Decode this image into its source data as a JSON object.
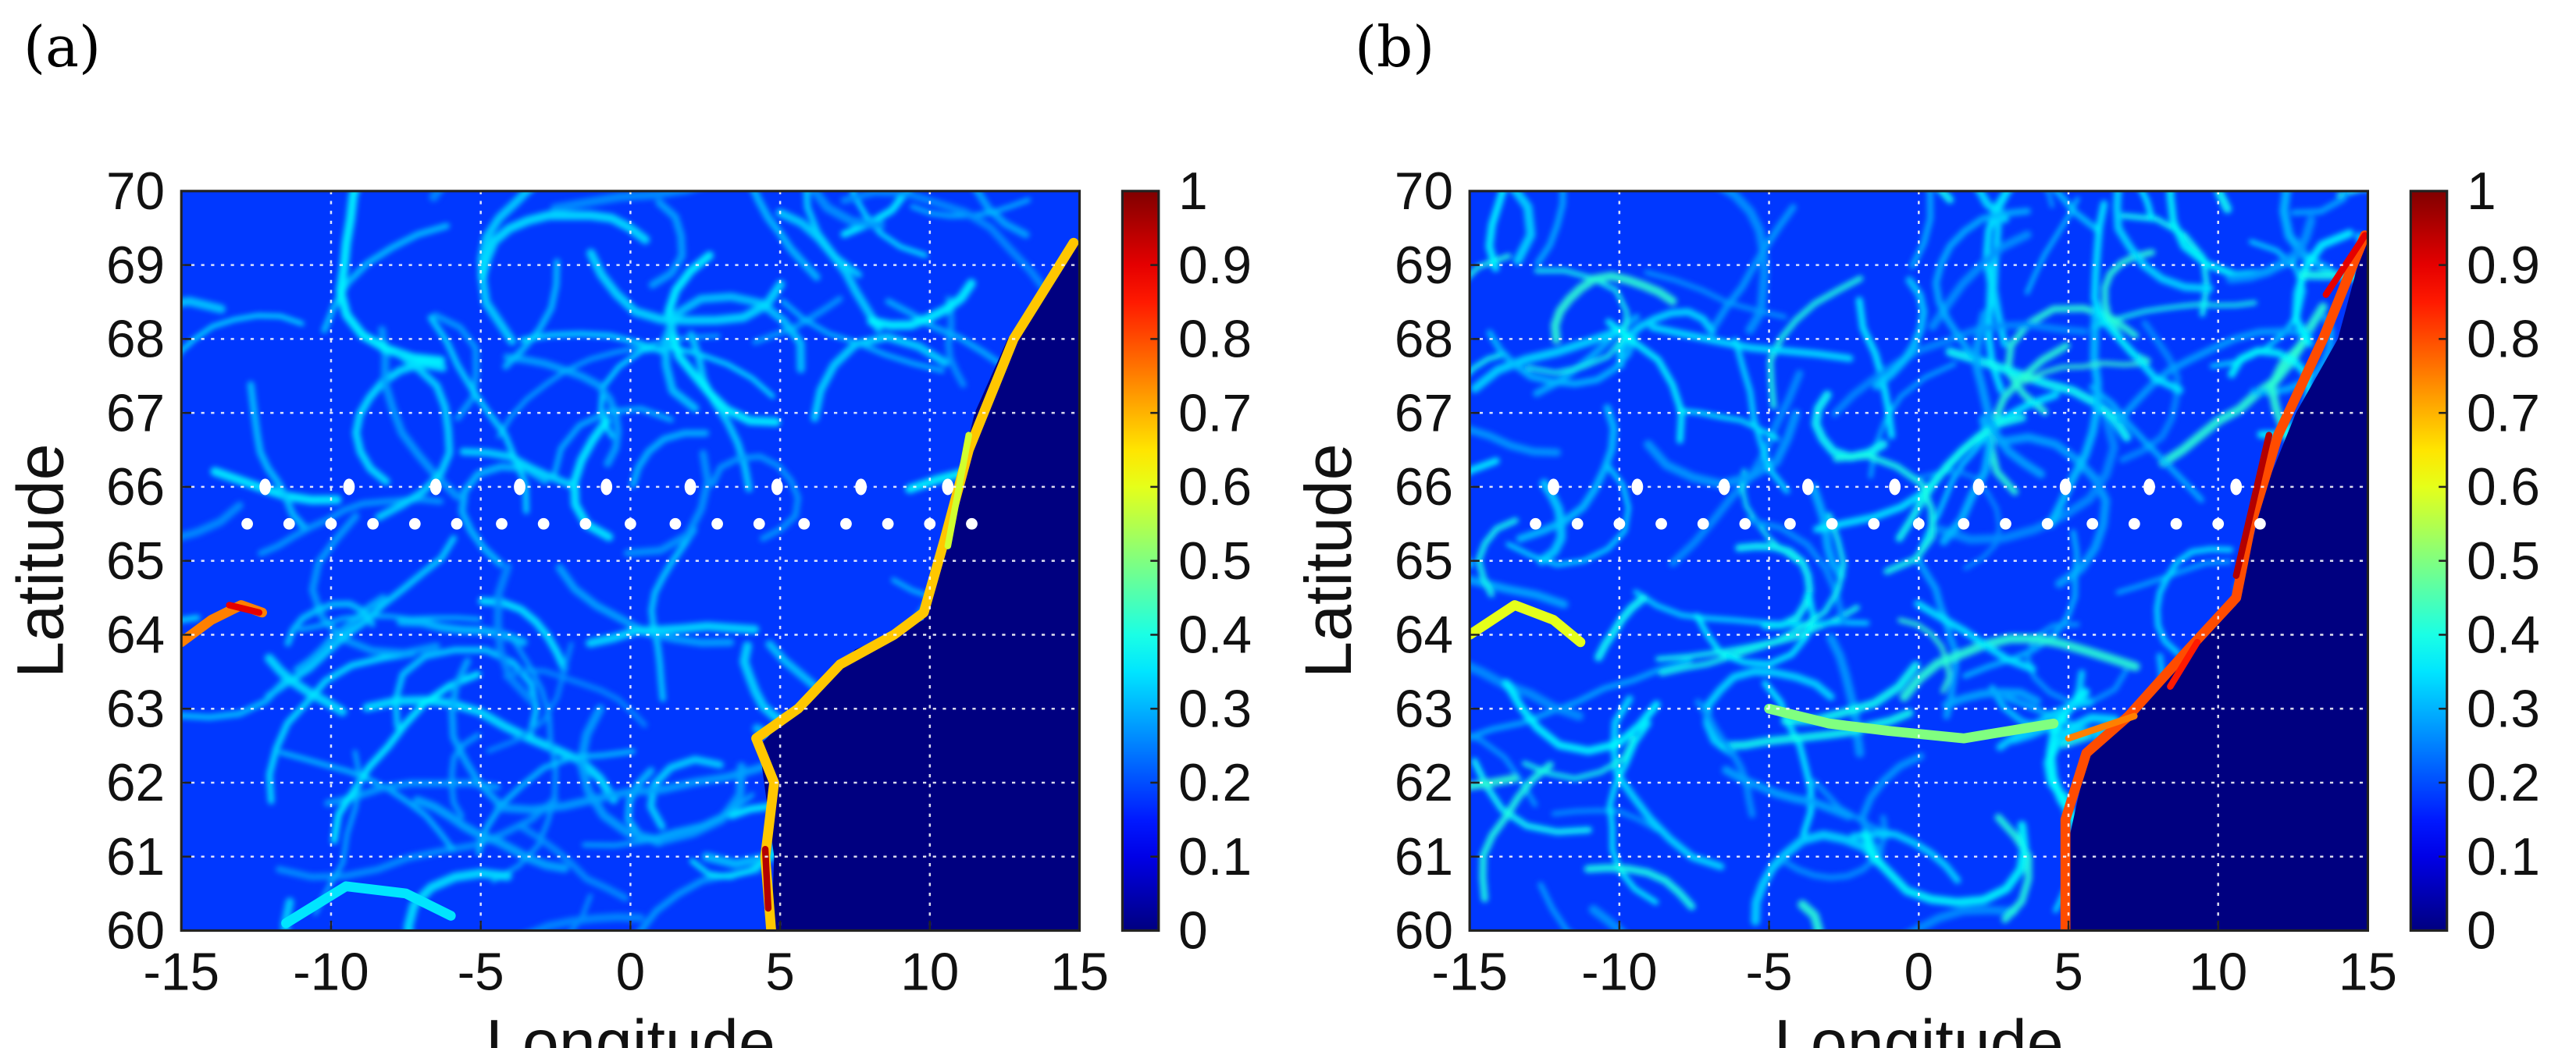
{
  "panels": [
    {
      "label": "(a)",
      "chart_data": {
        "type": "heatmap",
        "title": "",
        "xlabel": "Longitude",
        "ylabel": "Latitude",
        "xlim": [
          -15,
          15
        ],
        "ylim": [
          60,
          70
        ],
        "xticks": [
          -15,
          -10,
          -5,
          0,
          5,
          10,
          15
        ],
        "xtick_labels": [
          "-15",
          "-10",
          "-5",
          "0",
          "5",
          "10",
          "15"
        ],
        "yticks": [
          60,
          61,
          62,
          63,
          64,
          65,
          66,
          67,
          68,
          69,
          70
        ],
        "ytick_labels": [
          "60",
          "61",
          "62",
          "63",
          "64",
          "65",
          "66",
          "67",
          "68",
          "69",
          "70"
        ],
        "grid": true,
        "colormap": "jet",
        "colorbar": {
          "range": [
            0,
            1
          ],
          "ticks": [
            0,
            0.1,
            0.2,
            0.3,
            0.4,
            0.5,
            0.6,
            0.7,
            0.8,
            0.9,
            1
          ],
          "tick_labels": [
            "0",
            "0.1",
            "0.2",
            "0.3",
            "0.4",
            "0.5",
            "0.6",
            "0.7",
            "0.8",
            "0.9",
            "1"
          ]
        },
        "stations": {
          "upper_row": {
            "lat": 66.0,
            "lons": [
              -12.2,
              -9.4,
              -6.5,
              -3.7,
              -0.8,
              2.0,
              4.9,
              7.7,
              10.6
            ]
          },
          "lower_row": {
            "lat": 65.5,
            "lons": [
              -12.8,
              -11.4,
              -10.0,
              -8.6,
              -7.2,
              -5.8,
              -4.3,
              -2.9,
              -1.5,
              0,
              1.5,
              2.9,
              4.3,
              5.8,
              7.2,
              8.6,
              10.0,
              11.4
            ]
          }
        },
        "coast": [
          [
            4.7,
            60
          ],
          [
            4.8,
            61.0
          ],
          [
            4.3,
            62.5
          ],
          [
            6.0,
            63.2
          ],
          [
            7.5,
            63.8
          ],
          [
            9.8,
            64.2
          ],
          [
            10.3,
            65.0
          ],
          [
            11.5,
            67.0
          ],
          [
            12.6,
            68.0
          ],
          [
            15,
            69.3
          ]
        ],
        "ridges": [
          {
            "pts": [
              [
                4.7,
                60
              ],
              [
                4.5,
                61
              ],
              [
                4.8,
                62
              ],
              [
                4.2,
                62.6
              ],
              [
                5.6,
                63.0
              ],
              [
                7.0,
                63.6
              ],
              [
                8.8,
                64.0
              ],
              [
                9.8,
                64.3
              ],
              [
                10.5,
                65.3
              ],
              [
                11.3,
                66.5
              ],
              [
                12.8,
                68.0
              ],
              [
                14.8,
                69.3
              ]
            ],
            "v": 0.68
          },
          {
            "pts": [
              [
                -15,
                63.9
              ],
              [
                -14,
                64.2
              ],
              [
                -13,
                64.4
              ],
              [
                -12.3,
                64.3
              ]
            ],
            "v": 0.75
          },
          {
            "pts": [
              [
                -11.5,
                60.1
              ],
              [
                -9.5,
                60.6
              ],
              [
                -7.5,
                60.5
              ],
              [
                -6.0,
                60.2
              ]
            ],
            "v": 0.35
          }
        ],
        "peaks": [
          {
            "pts": [
              [
                4.6,
                60.3
              ],
              [
                4.5,
                61.1
              ]
            ],
            "v": 0.95
          },
          {
            "pts": [
              [
                10.6,
                65.2
              ],
              [
                11.3,
                66.7
              ]
            ],
            "v": 0.58
          },
          {
            "pts": [
              [
                -13.4,
                64.4
              ],
              [
                -12.4,
                64.3
              ]
            ],
            "v": 0.9
          }
        ],
        "noise_seed": 11,
        "noise_scale": 1.0
      }
    },
    {
      "label": "(b)",
      "chart_data": {
        "type": "heatmap",
        "title": "",
        "xlabel": "Longitude",
        "ylabel": "Latitude",
        "xlim": [
          -15,
          15
        ],
        "ylim": [
          60,
          70
        ],
        "xticks": [
          -15,
          -10,
          -5,
          0,
          5,
          10,
          15
        ],
        "xtick_labels": [
          "-15",
          "-10",
          "-5",
          "0",
          "5",
          "10",
          "15"
        ],
        "yticks": [
          60,
          61,
          62,
          63,
          64,
          65,
          66,
          67,
          68,
          69,
          70
        ],
        "ytick_labels": [
          "60",
          "61",
          "62",
          "63",
          "64",
          "65",
          "66",
          "67",
          "68",
          "69",
          "70"
        ],
        "grid": true,
        "colormap": "jet",
        "colorbar": {
          "range": [
            0,
            1
          ],
          "ticks": [
            0,
            0.1,
            0.2,
            0.3,
            0.4,
            0.5,
            0.6,
            0.7,
            0.8,
            0.9,
            1
          ],
          "tick_labels": [
            "0",
            "0.1",
            "0.2",
            "0.3",
            "0.4",
            "0.5",
            "0.6",
            "0.7",
            "0.8",
            "0.9",
            "1"
          ]
        },
        "stations": {
          "upper_row": {
            "lat": 66.0,
            "lons": [
              -12.2,
              -9.4,
              -6.5,
              -3.7,
              -0.8,
              2.0,
              4.9,
              7.7,
              10.6
            ]
          },
          "lower_row": {
            "lat": 65.5,
            "lons": [
              -12.8,
              -11.4,
              -10.0,
              -8.6,
              -7.2,
              -5.8,
              -4.3,
              -2.9,
              -1.5,
              0,
              1.5,
              2.9,
              4.3,
              5.8,
              7.2,
              8.6,
              10.0,
              11.4
            ]
          }
        },
        "coast": [
          [
            4.9,
            60
          ],
          [
            5.0,
            61.2
          ],
          [
            5.6,
            62.3
          ],
          [
            7.0,
            62.9
          ],
          [
            9.2,
            63.8
          ],
          [
            10.6,
            64.4
          ],
          [
            11.6,
            66.0
          ],
          [
            12.6,
            67.0
          ],
          [
            14.0,
            68.0
          ],
          [
            15,
            69.5
          ]
        ],
        "ridges": [
          {
            "pts": [
              [
                4.9,
                60
              ],
              [
                4.9,
                61.5
              ],
              [
                5.6,
                62.4
              ],
              [
                7.0,
                62.9
              ],
              [
                9.0,
                63.8
              ],
              [
                10.6,
                64.5
              ],
              [
                11.1,
                65.5
              ],
              [
                12.0,
                66.7
              ],
              [
                13.5,
                68.0
              ],
              [
                14.9,
                69.4
              ]
            ],
            "v": 0.8
          },
          {
            "pts": [
              [
                -15,
                64.0
              ],
              [
                -13.5,
                64.4
              ],
              [
                -12.2,
                64.2
              ],
              [
                -11.3,
                63.9
              ]
            ],
            "v": 0.6
          },
          {
            "pts": [
              [
                -5.0,
                63.0
              ],
              [
                -3.0,
                62.8
              ],
              [
                -1.0,
                62.7
              ],
              [
                1.5,
                62.6
              ],
              [
                4.5,
                62.8
              ]
            ],
            "v": 0.5
          }
        ],
        "peaks": [
          {
            "pts": [
              [
                10.6,
                64.8
              ],
              [
                11.7,
                66.7
              ]
            ],
            "v": 0.95
          },
          {
            "pts": [
              [
                13.6,
                68.6
              ],
              [
                14.9,
                69.4
              ]
            ],
            "v": 0.9
          },
          {
            "pts": [
              [
                5.0,
                62.6
              ],
              [
                7.2,
                62.9
              ]
            ],
            "v": 0.75
          },
          {
            "pts": [
              [
                8.4,
                63.3
              ],
              [
                9.3,
                63.9
              ]
            ],
            "v": 0.85
          }
        ],
        "noise_seed": 23,
        "noise_scale": 1.4
      }
    }
  ]
}
